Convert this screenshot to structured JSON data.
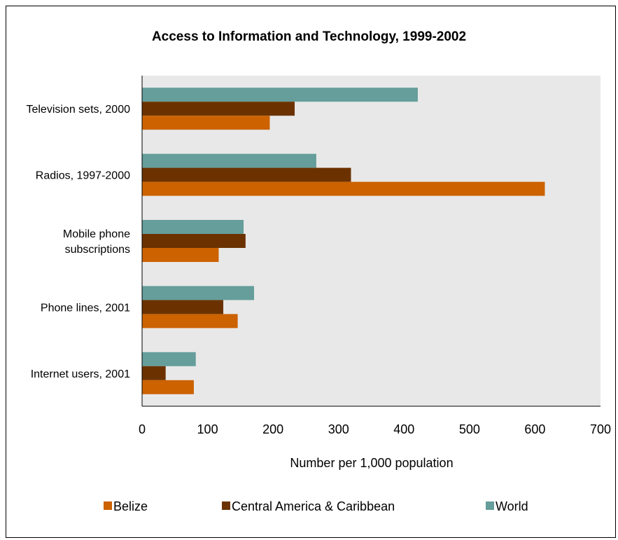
{
  "chart_data": {
    "type": "bar",
    "orientation": "horizontal",
    "title": "Access to Information and Technology, 1999-2002",
    "xlabel": "Number per 1,000 population",
    "ylabel": "",
    "xlim": [
      0,
      700
    ],
    "x_ticks": [
      "0",
      "100",
      "200",
      "300",
      "400",
      "500",
      "600",
      "700"
    ],
    "categories": [
      {
        "label_lines": [
          "Television sets, 2000"
        ]
      },
      {
        "label_lines": [
          "Radios, 1997-2000"
        ]
      },
      {
        "label_lines": [
          "Mobile phone",
          "subscriptions"
        ]
      },
      {
        "label_lines": [
          "Phone lines, 2001"
        ]
      },
      {
        "label_lines": [
          "Internet users, 2001"
        ]
      }
    ],
    "series": [
      {
        "name": "World",
        "color": "#659e9b",
        "values": [
          421,
          266,
          155,
          171,
          82
        ]
      },
      {
        "name": "Central America & Caribbean",
        "color": "#6b3200",
        "values": [
          233,
          319,
          158,
          124,
          36
        ]
      },
      {
        "name": "Belize",
        "color": "#cc6200",
        "values": [
          195,
          615,
          117,
          146,
          79
        ]
      }
    ],
    "legend": {
      "placement": "bottom",
      "items": [
        {
          "name": "Belize",
          "color": "#cc6200"
        },
        {
          "name": "Central America & Caribbean",
          "color": "#6b3200"
        },
        {
          "name": "World",
          "color": "#659e9b"
        }
      ]
    },
    "plot_background": "#e8e8e8",
    "grid": false
  }
}
